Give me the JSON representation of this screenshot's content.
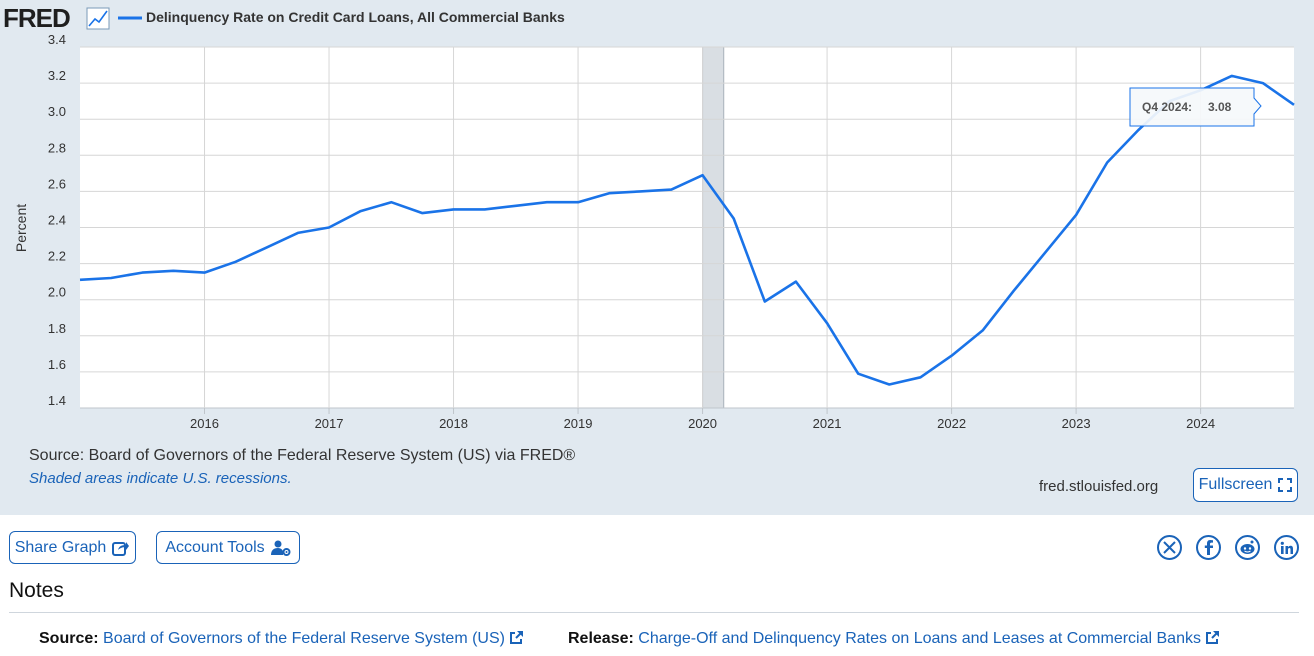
{
  "header": {
    "logo": "FRED",
    "series_title": "Delinquency Rate on Credit Card Loans, All Commercial Banks"
  },
  "chart_data": {
    "type": "line",
    "title": "Delinquency Rate on Credit Card Loans, All Commercial Banks",
    "ylabel": "Percent",
    "xlabel": "",
    "ylim": [
      1.4,
      3.4
    ],
    "xlim": [
      2015.0,
      2024.75
    ],
    "x_tick_labels": [
      "2016",
      "2017",
      "2018",
      "2019",
      "2020",
      "2021",
      "2022",
      "2023",
      "2024"
    ],
    "y_tick_labels": [
      "1.4",
      "1.6",
      "1.8",
      "2.0",
      "2.2",
      "2.4",
      "2.6",
      "2.8",
      "3.0",
      "3.2",
      "3.4"
    ],
    "grid": true,
    "recessions": [
      {
        "start": 2020.0,
        "end": 2020.17
      }
    ],
    "series": [
      {
        "name": "Delinquency Rate on Credit Card Loans, All Commercial Banks",
        "color": "#1a73e8",
        "points": [
          [
            "Q1 2015",
            2.11
          ],
          [
            "Q2 2015",
            2.12
          ],
          [
            "Q3 2015",
            2.15
          ],
          [
            "Q4 2015",
            2.16
          ],
          [
            "Q1 2016",
            2.15
          ],
          [
            "Q2 2016",
            2.21
          ],
          [
            "Q3 2016",
            2.29
          ],
          [
            "Q4 2016",
            2.37
          ],
          [
            "Q1 2017",
            2.4
          ],
          [
            "Q2 2017",
            2.49
          ],
          [
            "Q3 2017",
            2.54
          ],
          [
            "Q4 2017",
            2.48
          ],
          [
            "Q1 2018",
            2.5
          ],
          [
            "Q2 2018",
            2.5
          ],
          [
            "Q3 2018",
            2.52
          ],
          [
            "Q4 2018",
            2.54
          ],
          [
            "Q1 2019",
            2.54
          ],
          [
            "Q2 2019",
            2.59
          ],
          [
            "Q3 2019",
            2.6
          ],
          [
            "Q4 2019",
            2.61
          ],
          [
            "Q1 2020",
            2.69
          ],
          [
            "Q2 2020",
            2.45
          ],
          [
            "Q3 2020",
            1.99
          ],
          [
            "Q4 2020",
            2.1
          ],
          [
            "Q1 2021",
            1.87
          ],
          [
            "Q2 2021",
            1.59
          ],
          [
            "Q3 2021",
            1.53
          ],
          [
            "Q4 2021",
            1.57
          ],
          [
            "Q1 2022",
            1.69
          ],
          [
            "Q2 2022",
            1.83
          ],
          [
            "Q3 2022",
            2.05
          ],
          [
            "Q4 2022",
            2.26
          ],
          [
            "Q1 2023",
            2.47
          ],
          [
            "Q2 2023",
            2.76
          ],
          [
            "Q3 2023",
            2.94
          ],
          [
            "Q4 2023",
            3.1
          ],
          [
            "Q1 2024",
            3.16
          ],
          [
            "Q2 2024",
            3.24
          ],
          [
            "Q3 2024",
            3.2
          ],
          [
            "Q4 2024",
            3.08
          ]
        ]
      }
    ],
    "tooltip": {
      "label": "Q4 2024:",
      "value": "3.08"
    }
  },
  "footer_info": {
    "source_text": "Source: Board of Governors of the Federal Reserve System (US) via FRED®",
    "recession_note": "Shaded areas indicate U.S. recessions.",
    "site_url": "fred.stlouisfed.org",
    "fullscreen_label": "Fullscreen"
  },
  "actions": {
    "share_label": "Share Graph",
    "account_label": "Account Tools"
  },
  "social": [
    "x-icon",
    "facebook-icon",
    "reddit-icon",
    "linkedin-icon"
  ],
  "notes": {
    "title": "Notes",
    "source_key": "Source:",
    "source_value": "Board of Governors of the Federal Reserve System (US)",
    "release_key": "Release:",
    "release_value": "Charge-Off and Delinquency Rates on Loans and Leases at Commercial Banks"
  },
  "colors": {
    "accent": "#1a63b8",
    "panel_bg": "#e1e9f0",
    "line": "#1a73e8",
    "recession": "#d9dee3"
  }
}
